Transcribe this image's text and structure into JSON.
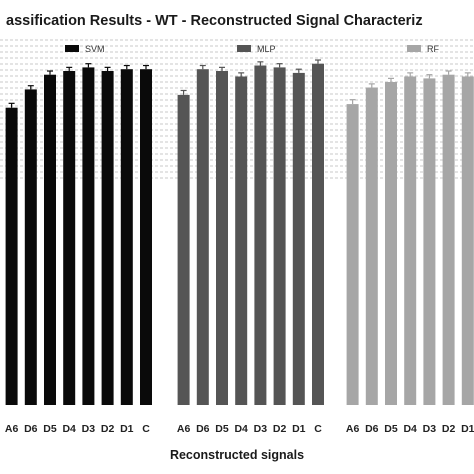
{
  "chart_data": {
    "type": "bar",
    "title": "assification Results  - WT - Reconstructed Signal Characteriz",
    "xlabel": "Reconstructed signals",
    "ylabel": "",
    "ylim": [
      0,
      100
    ],
    "grid": true,
    "legend_placement": "top, one entry above each panel",
    "panels": [
      {
        "name": "SVM",
        "color": "#0a0a0a",
        "categories": [
          "A6",
          "D6",
          "D5",
          "D4",
          "D3",
          "D2",
          "D1",
          "C"
        ],
        "values": [
          81,
          86,
          90,
          91,
          92,
          91,
          91.5,
          91.5
        ],
        "errors": [
          1.2,
          1.0,
          1.0,
          1.0,
          1.0,
          1.0,
          1.0,
          1.0
        ]
      },
      {
        "name": "MLP",
        "color": "#555555",
        "categories": [
          "A6",
          "D6",
          "D5",
          "D4",
          "D3",
          "D2",
          "D1",
          "C"
        ],
        "values": [
          84.5,
          91.5,
          91,
          89.5,
          92.5,
          92,
          90.5,
          93
        ],
        "errors": [
          1.2,
          1.0,
          1.0,
          1.0,
          1.0,
          1.0,
          1.0,
          1.0
        ]
      },
      {
        "name": "RF",
        "color": "#a6a6a6",
        "categories": [
          "A6",
          "D6",
          "D5",
          "D4",
          "D3",
          "D2",
          "D1"
        ],
        "values": [
          82,
          86.5,
          88,
          89.5,
          89,
          90,
          89.5
        ],
        "errors": [
          1.2,
          1.0,
          1.0,
          1.0,
          1.0,
          1.0,
          1.0
        ]
      }
    ]
  }
}
